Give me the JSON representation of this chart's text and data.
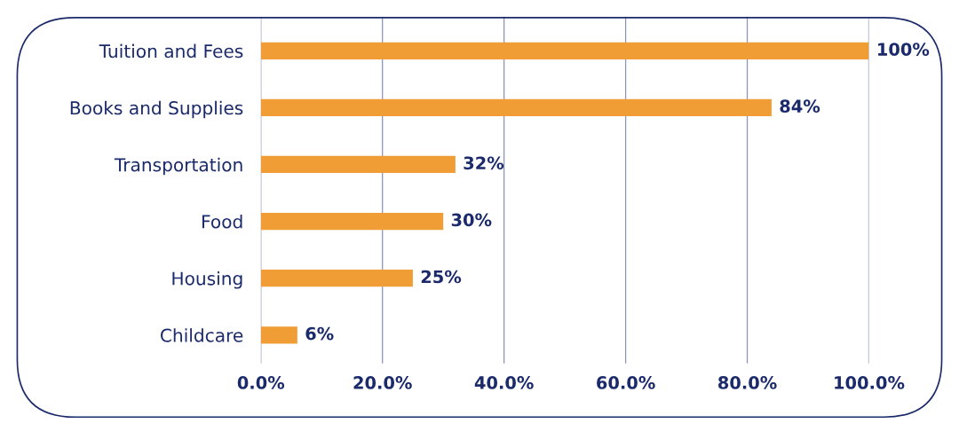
{
  "chart_data": {
    "type": "bar",
    "orientation": "horizontal",
    "categories": [
      "Tuition and Fees",
      "Books and Supplies",
      "Transportation",
      "Food",
      "Housing",
      "Childcare"
    ],
    "values": [
      100,
      84,
      32,
      30,
      25,
      6
    ],
    "value_labels": [
      "100%",
      "84%",
      "32%",
      "30%",
      "25%",
      "6%"
    ],
    "color": "#ef9d34",
    "xlim": [
      0,
      100
    ],
    "xticks": [
      {
        "value": 0,
        "label": "0.0%"
      },
      {
        "value": 20,
        "label": "20.0%"
      },
      {
        "value": 40,
        "label": "40.0%"
      },
      {
        "value": 60,
        "label": "60.0%"
      },
      {
        "value": 80,
        "label": "80.0%"
      },
      {
        "value": 100,
        "label": "100.0%"
      }
    ],
    "grid": "x",
    "legend": false
  }
}
